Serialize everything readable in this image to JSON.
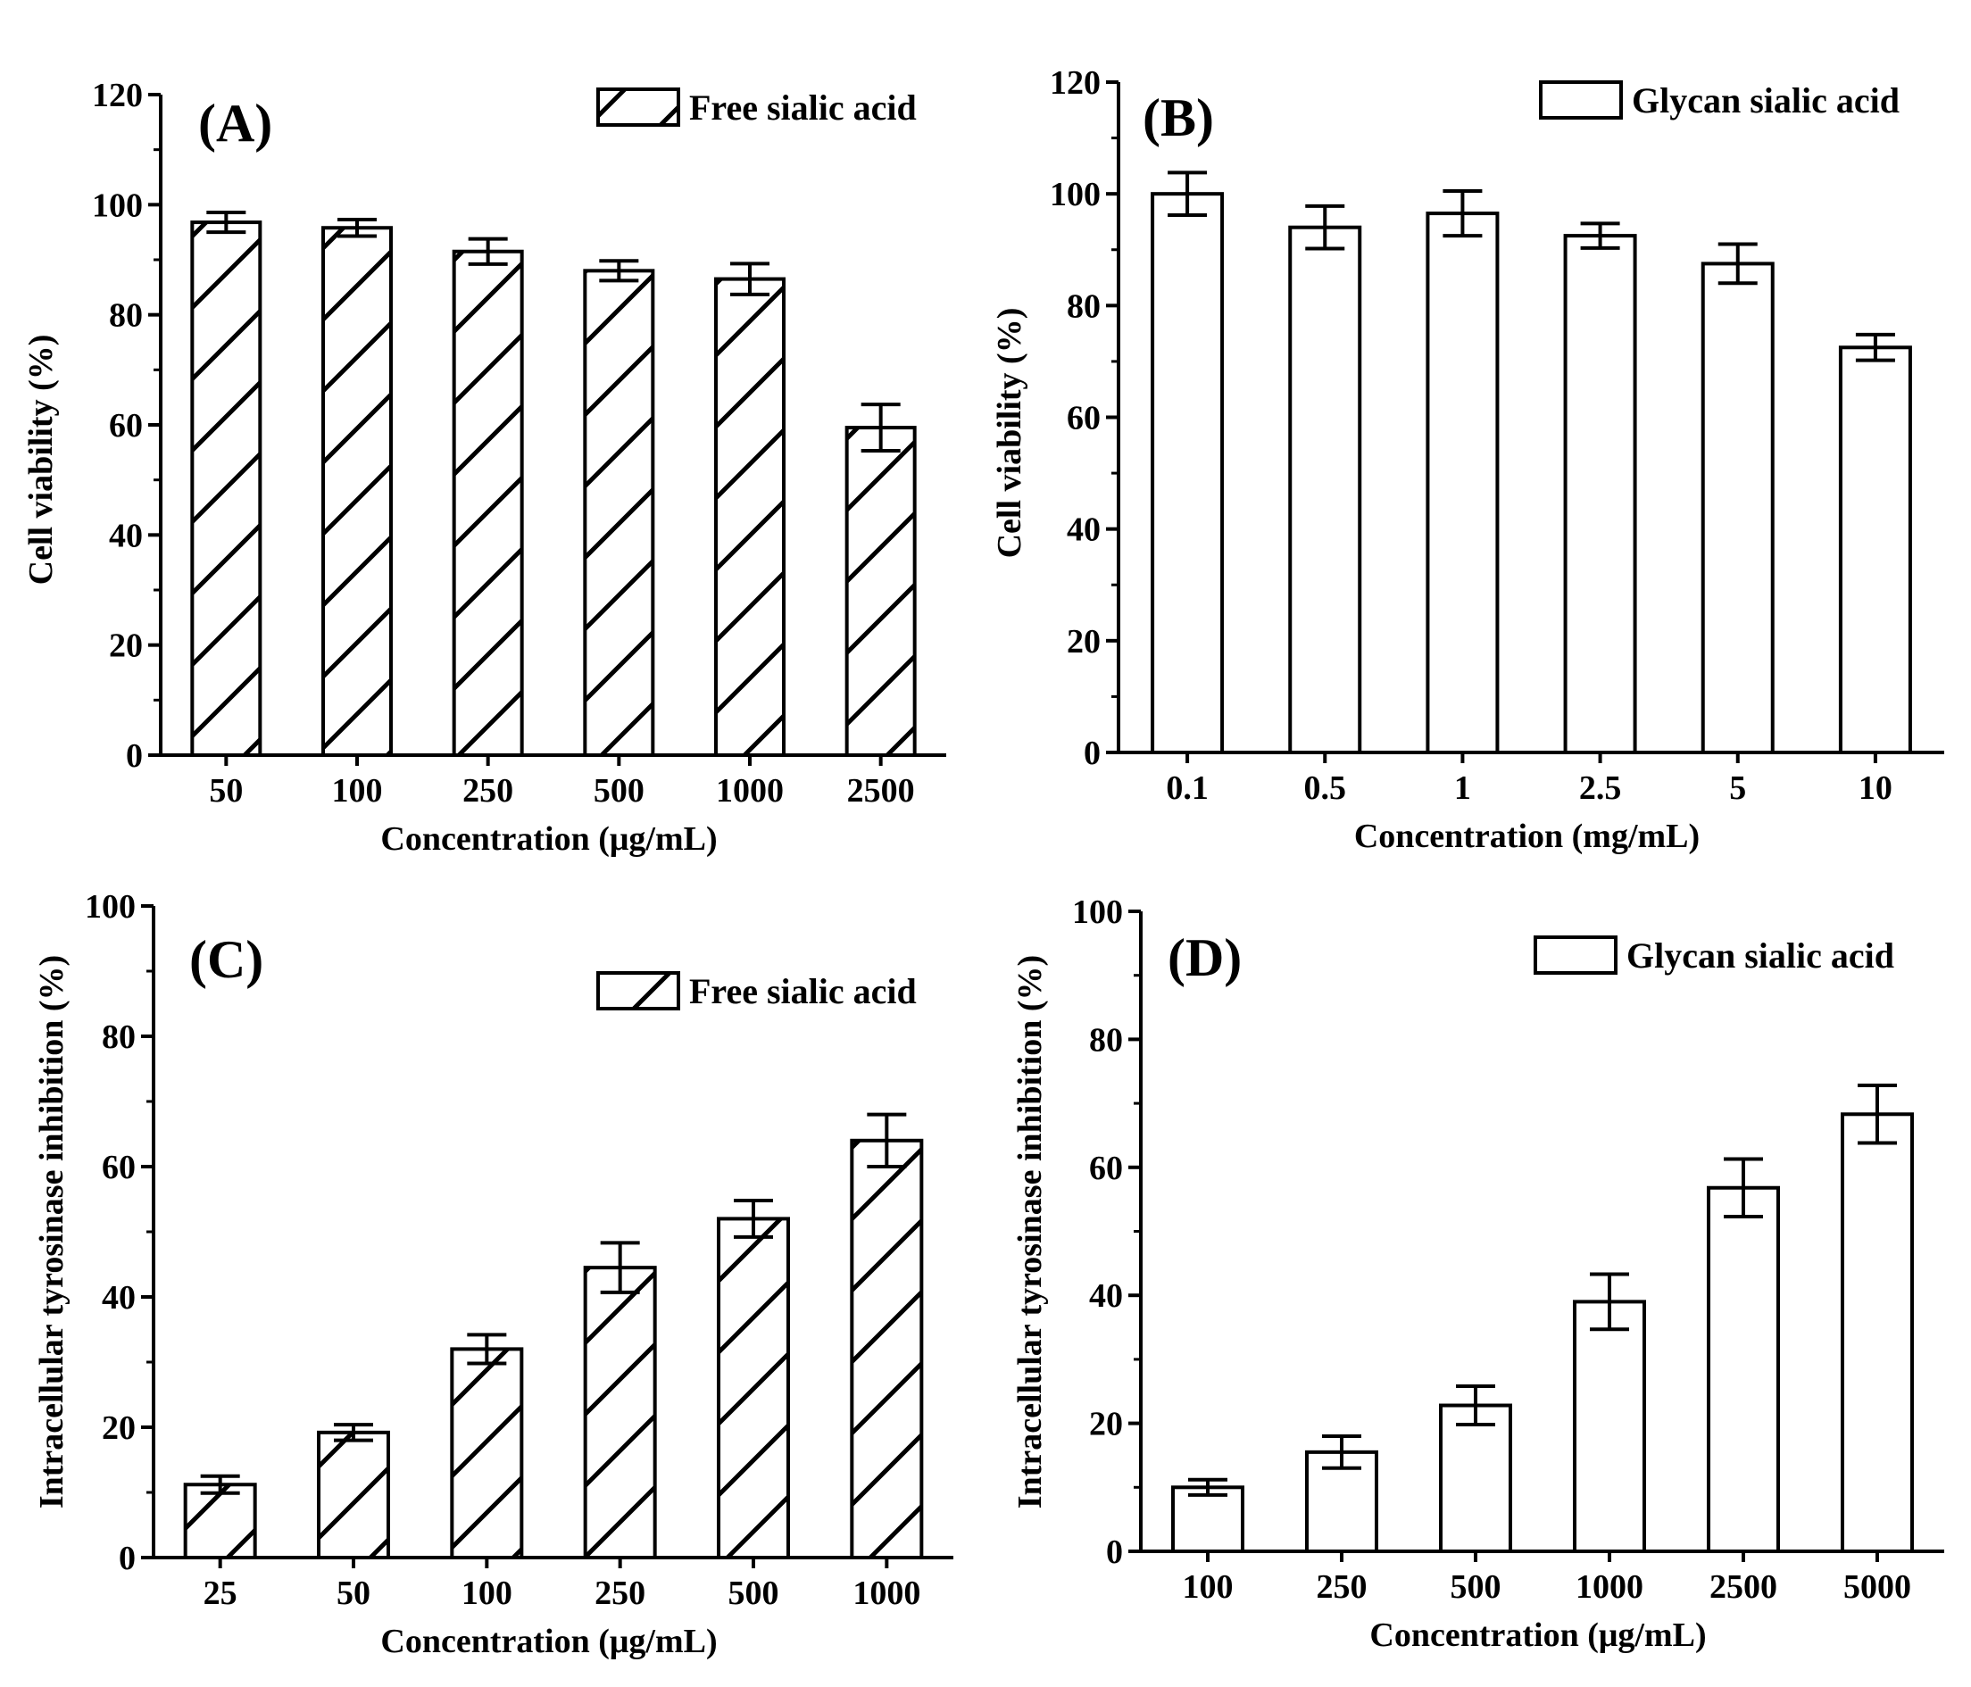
{
  "chart_data": [
    {
      "id": "A",
      "type": "bar",
      "panel_label": "(A)",
      "legend": "Free sialic acid",
      "legend_position": "top-right",
      "pattern": "hatched",
      "categories": [
        "50",
        "100",
        "250",
        "500",
        "1000",
        "2500"
      ],
      "values": [
        96.8,
        95.8,
        91.5,
        88.0,
        86.5,
        59.5
      ],
      "errors": [
        1.8,
        1.5,
        2.3,
        1.8,
        2.8,
        4.2
      ],
      "xlabel": "Concentration (μg/mL)",
      "ylabel": "Cell viability (%)",
      "ylim": [
        0,
        120
      ],
      "yticks": [
        "0",
        "20",
        "40",
        "60",
        "80",
        "100",
        "120"
      ],
      "grid": false
    },
    {
      "id": "B",
      "type": "bar",
      "panel_label": "(B)",
      "legend": "Glycan sialic acid",
      "legend_position": "top-right",
      "pattern": "open",
      "categories": [
        "0.1",
        "0.5",
        "1",
        "2.5",
        "5",
        "10"
      ],
      "values": [
        100.0,
        94.0,
        96.5,
        92.5,
        87.5,
        72.5
      ],
      "errors": [
        3.8,
        3.8,
        4.0,
        2.2,
        3.5,
        2.3
      ],
      "xlabel": "Concentration (mg/mL)",
      "ylabel": "Cell viability (%)",
      "ylim": [
        0,
        120
      ],
      "yticks": [
        "0",
        "20",
        "40",
        "60",
        "80",
        "100",
        "120"
      ],
      "grid": false
    },
    {
      "id": "C",
      "type": "bar",
      "panel_label": "(C)",
      "legend": "Free sialic acid",
      "legend_position": "top-right",
      "pattern": "hatched",
      "categories": [
        "25",
        "50",
        "100",
        "250",
        "500",
        "1000"
      ],
      "values": [
        11.2,
        19.2,
        32.0,
        44.5,
        52.0,
        64.0
      ],
      "errors": [
        1.3,
        1.2,
        2.2,
        3.8,
        2.8,
        4.0
      ],
      "xlabel": "Concentration (μg/mL)",
      "ylabel": "Intracellular tyrosinase inhibition (%)",
      "ylim": [
        0,
        100
      ],
      "yticks": [
        "0",
        "20",
        "40",
        "60",
        "80",
        "100"
      ],
      "grid": false
    },
    {
      "id": "D",
      "type": "bar",
      "panel_label": "(D)",
      "legend": "Glycan sialic acid",
      "legend_position": "top-right",
      "pattern": "open",
      "categories": [
        "100",
        "250",
        "500",
        "1000",
        "2500",
        "5000"
      ],
      "values": [
        10.0,
        15.5,
        22.8,
        39.0,
        56.8,
        68.3
      ],
      "errors": [
        1.2,
        2.5,
        3.0,
        4.3,
        4.5,
        4.5
      ],
      "xlabel": "Concentration (μg/mL)",
      "ylabel": "Intracellular tyrosinase inhibition (%)",
      "ylim": [
        0,
        100
      ],
      "yticks": [
        "0",
        "20",
        "40",
        "60",
        "80",
        "100"
      ],
      "grid": false
    }
  ]
}
